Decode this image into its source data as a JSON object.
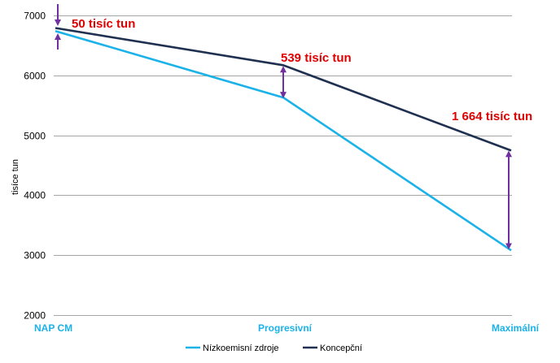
{
  "chart_data": {
    "type": "line",
    "categories": [
      "NAP CM",
      "Progresivní",
      "Maximální"
    ],
    "series": [
      {
        "name": "Nízkoemisní zdroje",
        "values": [
          6740,
          5630,
          3080
        ],
        "color": "#1AB2E8"
      },
      {
        "name": "Koncepční",
        "values": [
          6790,
          6170,
          4745
        ],
        "color": "#1F3050"
      }
    ],
    "ylabel": "tisíce tun",
    "ylim": [
      2000,
      7000
    ],
    "yticks": [
      2000,
      3000,
      4000,
      5000,
      6000,
      7000
    ],
    "grid": true,
    "legend": "bottom",
    "annotations": [
      {
        "text": "50 tisíc tun",
        "category": "NAP CM"
      },
      {
        "text": "539 tisíc tun",
        "category": "Progresivní"
      },
      {
        "text": "1 664 tisíc tun",
        "category": "Maximální"
      }
    ],
    "colors": {
      "arrow": "#7030A0",
      "annotation": "#E00000",
      "category_label": "#1AB2E8",
      "grid": "#A6A6A6"
    }
  }
}
